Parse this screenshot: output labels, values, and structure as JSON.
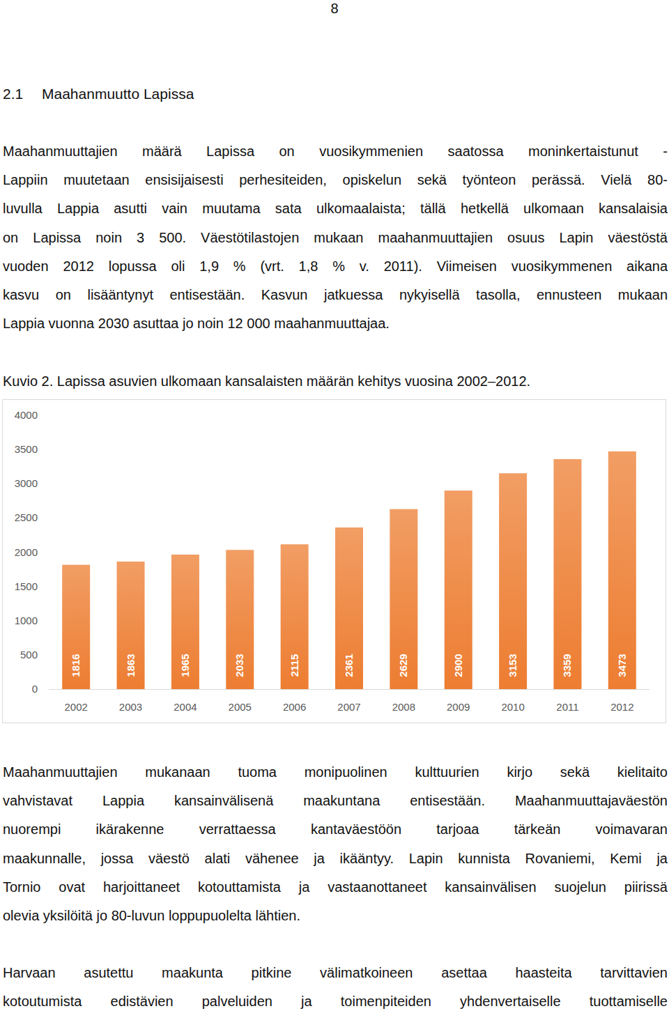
{
  "page_number": "8",
  "heading": {
    "number": "2.1",
    "title": "Maahanmuutto Lapissa"
  },
  "paragraphs": [
    {
      "lines": [
        "Maahanmuuttajien määrä Lapissa on vuosikymmenien saatossa moninkertaistunut -",
        "Lappiin muutetaan ensisijaisesti perhesiteiden, opiskelun sekä työnteon perässä. Vielä 80-",
        "luvulla Lappia asutti vain muutama sata ulkomaalaista; tällä hetkellä ulkomaan kansalaisia",
        "on Lapissa noin 3 500. Väestötilastojen mukaan maahanmuuttajien osuus Lapin väestöstä",
        "vuoden 2012 lopussa oli 1,9 % (vrt. 1,8 % v. 2011). Viimeisen vuosikymmenen aikana",
        "kasvu on lisääntynyt entisestään. Kasvun jatkuessa nykyisellä tasolla, ennusteen mukaan",
        "Lappia vuonna 2030 asuttaa jo noin 12 000 maahanmuuttajaa."
      ]
    },
    {
      "lines": [
        "Maahanmuuttajien mukanaan tuoma monipuolinen kulttuurien kirjo sekä kielitaito",
        "vahvistavat Lappia kansainvälisenä maakuntana entisestään. Maahanmuuttajaväestön",
        "nuorempi ikärakenne verrattaessa kantaväestöön tarjoaa tärkeän voimavaran",
        "maakunnalle, jossa väestö alati vähenee ja ikääntyy. Lapin kunnista Rovaniemi, Kemi ja",
        "Tornio ovat harjoittaneet kotouttamista ja vastaanottaneet kansainvälisen suojelun piirissä",
        "olevia yksilöitä jo 80-luvun loppupuolelta lähtien."
      ]
    },
    {
      "lines": [
        "Harvaan asutettu maakunta pitkine välimatkoineen asettaa haasteita tarvittavien",
        "kotoutumista edistävien palveluiden ja toimenpiteiden yhdenvertaiselle tuottamiselle"
      ]
    }
  ],
  "chart_data": {
    "type": "bar",
    "title": "Kuvio 2. Lapissa asuvien ulkomaan kansalaisten määrän kehitys vuosina 2002–2012.",
    "categories": [
      "2002",
      "2003",
      "2004",
      "2005",
      "2006",
      "2007",
      "2008",
      "2009",
      "2010",
      "2011",
      "2012"
    ],
    "values": [
      1816,
      1863,
      1965,
      2033,
      2115,
      2361,
      2629,
      2900,
      3153,
      3359,
      3473
    ],
    "color": "#ed7d31",
    "ylim": [
      0,
      4000
    ],
    "yticks": [
      0,
      500,
      1000,
      1500,
      2000,
      2500,
      3000,
      3500,
      4000
    ],
    "grid": false,
    "data_labels": true
  }
}
